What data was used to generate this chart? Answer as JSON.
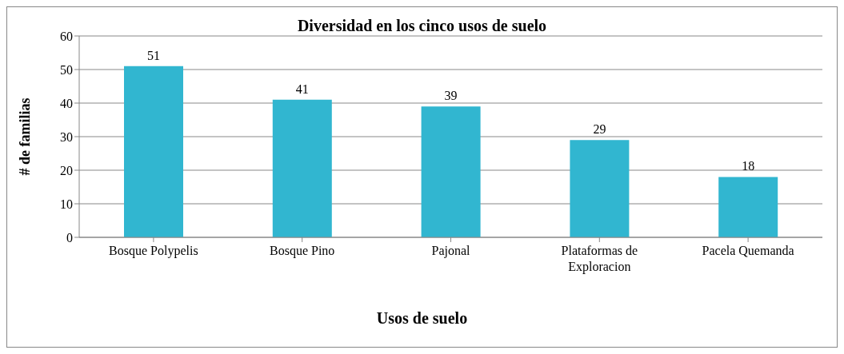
{
  "chart_data": {
    "type": "bar",
    "title": "Diversidad en los cinco usos de suelo",
    "xlabel": "Usos de suelo",
    "ylabel": "# de familias",
    "categories": [
      "Bosque Polypelis",
      "Bosque Pino",
      "Pajonal",
      "Plataformas de Exploracion",
      "Pacela Quemanda"
    ],
    "values": [
      51,
      41,
      39,
      29,
      18
    ],
    "color": "#31b6d0",
    "ylim": [
      0,
      60
    ],
    "yticks": [
      0,
      10,
      20,
      30,
      40,
      50,
      60
    ],
    "grid": "y",
    "data_labels": true,
    "legend": false
  }
}
